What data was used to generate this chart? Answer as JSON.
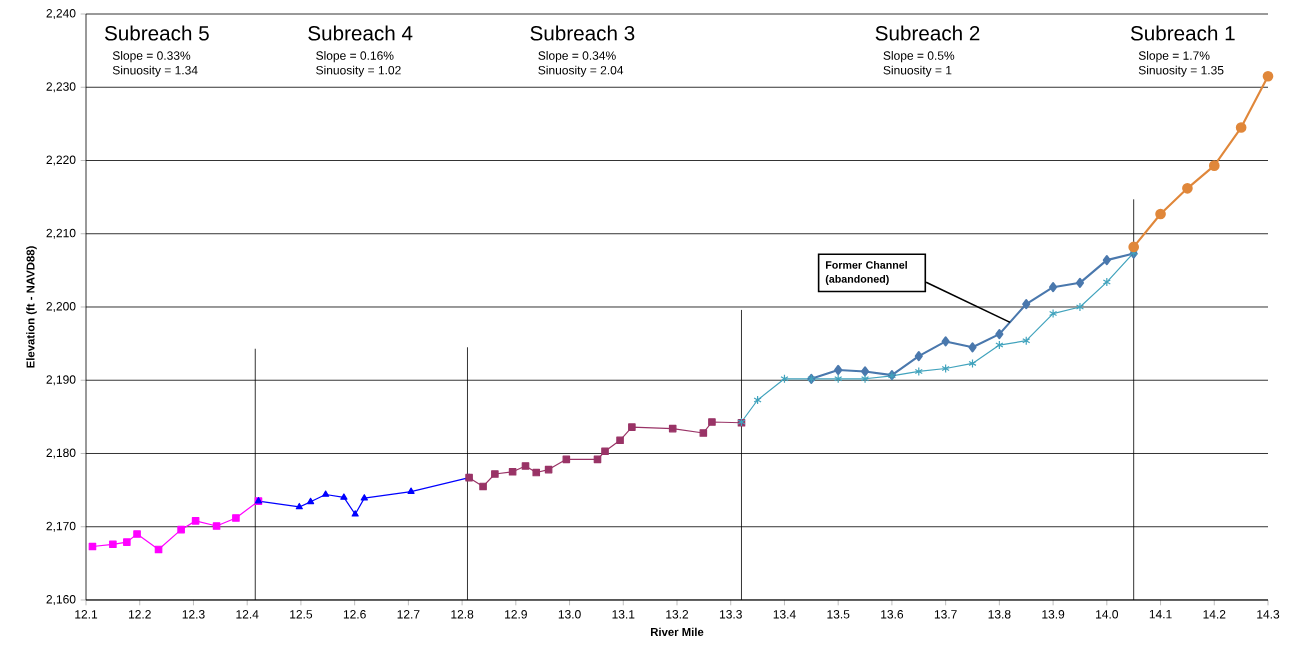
{
  "chart_data": {
    "type": "line",
    "xlabel": "River Mile",
    "ylabel": "Elevation (ft - NAVD88)",
    "xlim": [
      12.1,
      14.3
    ],
    "ylim": [
      2160,
      2240
    ],
    "xticks": [
      12.1,
      12.2,
      12.3,
      12.4,
      12.5,
      12.6,
      12.7,
      12.8,
      12.9,
      {
        "value": 13.0,
        "label": "13.0"
      },
      13.1,
      13.2,
      13.3,
      13.4,
      13.5,
      13.6,
      13.7,
      13.8,
      13.9,
      {
        "value": 14.0,
        "label": "14.0"
      },
      14.1,
      14.2,
      14.3
    ],
    "yticks": [
      {
        "value": 2160,
        "label": "2,160"
      },
      {
        "value": 2170,
        "label": "2,170"
      },
      {
        "value": 2180,
        "label": "2,180"
      },
      {
        "value": 2190,
        "label": "2,190"
      },
      {
        "value": 2200,
        "label": "2,200"
      },
      {
        "value": 2210,
        "label": "2,210"
      },
      {
        "value": 2220,
        "label": "2,220"
      },
      {
        "value": 2230,
        "label": "2,230"
      },
      {
        "value": 2240,
        "label": "2,240"
      }
    ],
    "grid": "y",
    "series": [
      {
        "color": "#ff00ff",
        "marker": "square",
        "x": [
          12.112,
          12.15,
          12.176,
          12.195,
          12.235,
          12.277,
          12.304,
          12.343,
          12.379,
          12.421
        ],
        "values": [
          2167.3,
          2167.6,
          2167.9,
          2169.0,
          2166.9,
          2169.6,
          2170.8,
          2170.1,
          2171.2,
          2173.5
        ]
      },
      {
        "color": "#0000ff",
        "marker": "triangle",
        "x": [
          12.421,
          12.497,
          12.518,
          12.546,
          12.58,
          12.601,
          12.618,
          12.705,
          12.813
        ],
        "values": [
          2173.5,
          2172.7,
          2173.4,
          2174.4,
          2174.0,
          2171.7,
          2173.9,
          2174.8,
          2176.7
        ]
      },
      {
        "color": "#993366",
        "marker": "square",
        "x": [
          12.813,
          12.839,
          12.861,
          12.894,
          12.918,
          12.938,
          12.961,
          12.994,
          13.052,
          13.066,
          13.094,
          13.116,
          13.192,
          13.249,
          13.265,
          13.32
        ],
        "values": [
          2176.7,
          2175.5,
          2177.2,
          2177.5,
          2178.3,
          2177.4,
          2177.8,
          2179.2,
          2179.2,
          2180.3,
          2181.8,
          2183.6,
          2183.4,
          2182.8,
          2184.3,
          2184.2
        ]
      },
      {
        "color": "#4a78ad",
        "marker": "diamond",
        "x": [
          13.45,
          13.5,
          13.55,
          13.6,
          13.65,
          13.7,
          13.75,
          13.8,
          13.85,
          13.9,
          13.95,
          14.0,
          14.05
        ],
        "values": [
          2190.2,
          2191.4,
          2191.2,
          2190.7,
          2193.3,
          2195.3,
          2194.5,
          2196.3,
          2200.4,
          2202.7,
          2203.3,
          2206.4,
          2207.3
        ]
      },
      {
        "color": "#41a3bd",
        "marker": "cross",
        "x": [
          13.32,
          13.35,
          13.4,
          13.45,
          13.5,
          13.55,
          13.6,
          13.65,
          13.7,
          13.75,
          13.8,
          13.85,
          13.9,
          13.95,
          14.0,
          14.05
        ],
        "values": [
          2184.3,
          2187.3,
          2190.2,
          2190.2,
          2190.2,
          2190.2,
          2190.6,
          2191.2,
          2191.6,
          2192.3,
          2194.8,
          2195.4,
          2199.1,
          2200.0,
          2203.4,
          2207.4
        ]
      },
      {
        "color": "#e0873a",
        "marker": "circle",
        "x": [
          14.05,
          14.1,
          14.15,
          14.2,
          14.25,
          14.3
        ],
        "values": [
          2208.2,
          2212.7,
          2216.2,
          2219.3,
          2224.5,
          2231.5
        ]
      },
      {
        "color": "#000000",
        "marker": "none",
        "x": [
          12.415,
          12.415
        ],
        "values": [
          2160,
          2194.3
        ]
      },
      {
        "color": "#000000",
        "marker": "none",
        "x": [
          12.81,
          12.81
        ],
        "values": [
          2160,
          2194.5
        ]
      },
      {
        "color": "#000000",
        "marker": "none",
        "x": [
          13.32,
          13.32
        ],
        "values": [
          2160,
          2199.6
        ]
      },
      {
        "color": "#000000",
        "marker": "none",
        "x": [
          14.05,
          14.05
        ],
        "values": [
          2160,
          2214.7
        ]
      }
    ],
    "annotations": [
      "Subreach 5",
      "Slope = 0.33%",
      "Sinuosity = 1.34",
      "Subreach 4",
      "Slope = 0.16%",
      "Sinuosity = 1.02",
      "Subreach 3",
      "Slope = 0.34%",
      "Sinuosity = 2.04",
      "Subreach 2",
      "Slope = 0.5%",
      "Sinuosity = 1",
      "Subreach 1",
      "Slope = 1.7%",
      "Sinuosity = 1.35",
      "Former Channel (abandoned)"
    ]
  }
}
